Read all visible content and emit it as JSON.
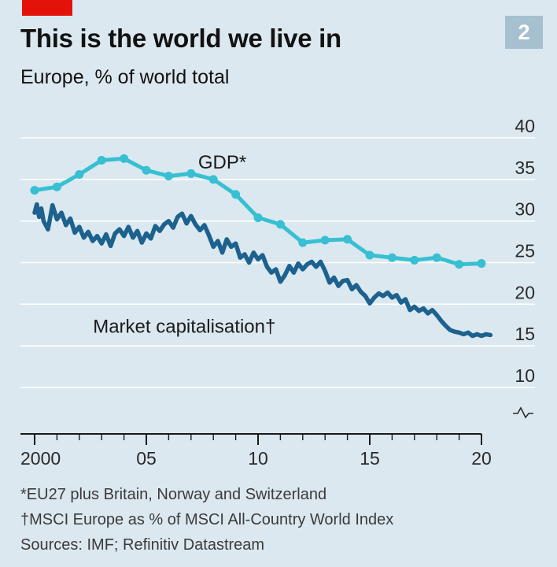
{
  "header": {
    "title": "This is the world we live in",
    "subtitle": "Europe, % of world total",
    "chart_number": "2"
  },
  "footnotes": {
    "gdp_note": "*EU27 plus Britain, Norway and Switzerland",
    "mcap_note": "†MSCI Europe as % of MSCI All-Country World Index",
    "sources": "Sources: IMF; Refinitiv Datastream"
  },
  "colors": {
    "background": "#dbe8ef",
    "accent_red": "#e3120b",
    "gdp_series": "#37bfd2",
    "market_cap_series": "#1d618e"
  },
  "chart_data": {
    "type": "line",
    "title": "This is the world we live in",
    "subtitle": "Europe, % of world total",
    "xlabel": "",
    "ylabel": "",
    "xlim": [
      2000,
      2020
    ],
    "ylim": [
      10,
      40
    ],
    "y_axis_broken_below": 10,
    "y_axis_side": "right",
    "grid": true,
    "x_ticks": [
      {
        "value": 2000,
        "label": "2000"
      },
      {
        "value": 2005,
        "label": "05"
      },
      {
        "value": 2010,
        "label": "10"
      },
      {
        "value": 2015,
        "label": "15"
      },
      {
        "value": 2020,
        "label": "20"
      }
    ],
    "y_ticks": [
      {
        "value": 10,
        "label": "10"
      },
      {
        "value": 15,
        "label": "15"
      },
      {
        "value": 20,
        "label": "20"
      },
      {
        "value": 25,
        "label": "25"
      },
      {
        "value": 30,
        "label": "30"
      },
      {
        "value": 35,
        "label": "35"
      },
      {
        "value": 40,
        "label": "40"
      }
    ],
    "series": [
      {
        "name": "GDP*",
        "label_at": [
          2008.4,
          36.3
        ],
        "color": "#37bfd2",
        "markers": true,
        "x": [
          2000,
          2001,
          2002,
          2003,
          2004,
          2005,
          2006,
          2007,
          2008,
          2009,
          2010,
          2011,
          2012,
          2013,
          2014,
          2015,
          2016,
          2017,
          2018,
          2019,
          2020
        ],
        "y": [
          33.7,
          34.1,
          35.6,
          37.3,
          37.5,
          36.1,
          35.4,
          35.7,
          35.0,
          33.2,
          30.4,
          29.6,
          27.4,
          27.7,
          27.8,
          25.9,
          25.6,
          25.3,
          25.6,
          24.8,
          24.9
        ]
      },
      {
        "name": "Market capitalisation†",
        "label_at": [
          2006.7,
          16.6
        ],
        "color": "#1d618e",
        "markers": false,
        "x": [
          2000.0,
          2000.1,
          2000.2,
          2000.3,
          2000.4,
          2000.6,
          2000.8,
          2001.0,
          2001.2,
          2001.4,
          2001.6,
          2001.8,
          2002.0,
          2002.2,
          2002.4,
          2002.6,
          2002.8,
          2003.0,
          2003.2,
          2003.4,
          2003.6,
          2003.8,
          2004.0,
          2004.2,
          2004.4,
          2004.6,
          2004.8,
          2005.0,
          2005.2,
          2005.4,
          2005.6,
          2005.8,
          2006.0,
          2006.2,
          2006.4,
          2006.6,
          2006.8,
          2007.0,
          2007.2,
          2007.4,
          2007.6,
          2007.8,
          2008.0,
          2008.2,
          2008.4,
          2008.6,
          2008.8,
          2009.0,
          2009.2,
          2009.4,
          2009.6,
          2009.8,
          2010.0,
          2010.2,
          2010.4,
          2010.6,
          2010.8,
          2011.0,
          2011.2,
          2011.4,
          2011.6,
          2011.8,
          2012.0,
          2012.2,
          2012.4,
          2012.6,
          2012.8,
          2013.0,
          2013.2,
          2013.4,
          2013.6,
          2013.8,
          2014.0,
          2014.2,
          2014.4,
          2014.6,
          2014.8,
          2015.0,
          2015.2,
          2015.4,
          2015.6,
          2015.8,
          2016.0,
          2016.2,
          2016.4,
          2016.6,
          2016.8,
          2017.0,
          2017.2,
          2017.4,
          2017.6,
          2017.8,
          2018.0,
          2018.2,
          2018.4,
          2018.6,
          2018.8,
          2019.0,
          2019.2,
          2019.4,
          2019.6,
          2019.8,
          2020.0,
          2020.2,
          2020.4
        ],
        "y": [
          31.0,
          32.0,
          30.5,
          31.5,
          30.0,
          29.0,
          31.9,
          30.2,
          31.0,
          29.5,
          30.3,
          28.6,
          29.3,
          28.0,
          28.7,
          27.6,
          28.2,
          27.3,
          28.4,
          27.0,
          28.5,
          29.0,
          28.2,
          29.3,
          28.0,
          28.8,
          27.4,
          28.5,
          27.9,
          29.4,
          28.8,
          29.6,
          30.0,
          29.2,
          30.5,
          30.9,
          29.7,
          30.6,
          29.6,
          28.9,
          29.5,
          28.3,
          26.9,
          27.6,
          26.2,
          27.8,
          26.9,
          27.3,
          25.6,
          26.0,
          25.0,
          26.2,
          25.4,
          25.9,
          24.5,
          23.8,
          24.2,
          22.7,
          23.5,
          24.6,
          23.8,
          24.9,
          24.2,
          24.8,
          25.1,
          24.5,
          25.1,
          24.0,
          22.6,
          23.2,
          22.2,
          22.8,
          22.9,
          21.8,
          22.3,
          21.5,
          21.0,
          20.1,
          20.8,
          21.3,
          21.0,
          21.4,
          20.8,
          21.1,
          20.2,
          20.6,
          19.3,
          19.7,
          19.2,
          19.5,
          18.9,
          19.3,
          18.7,
          18.0,
          17.4,
          16.9,
          16.7,
          16.6,
          16.4,
          16.6,
          16.2,
          16.4,
          16.2,
          16.4,
          16.3
        ]
      }
    ]
  }
}
